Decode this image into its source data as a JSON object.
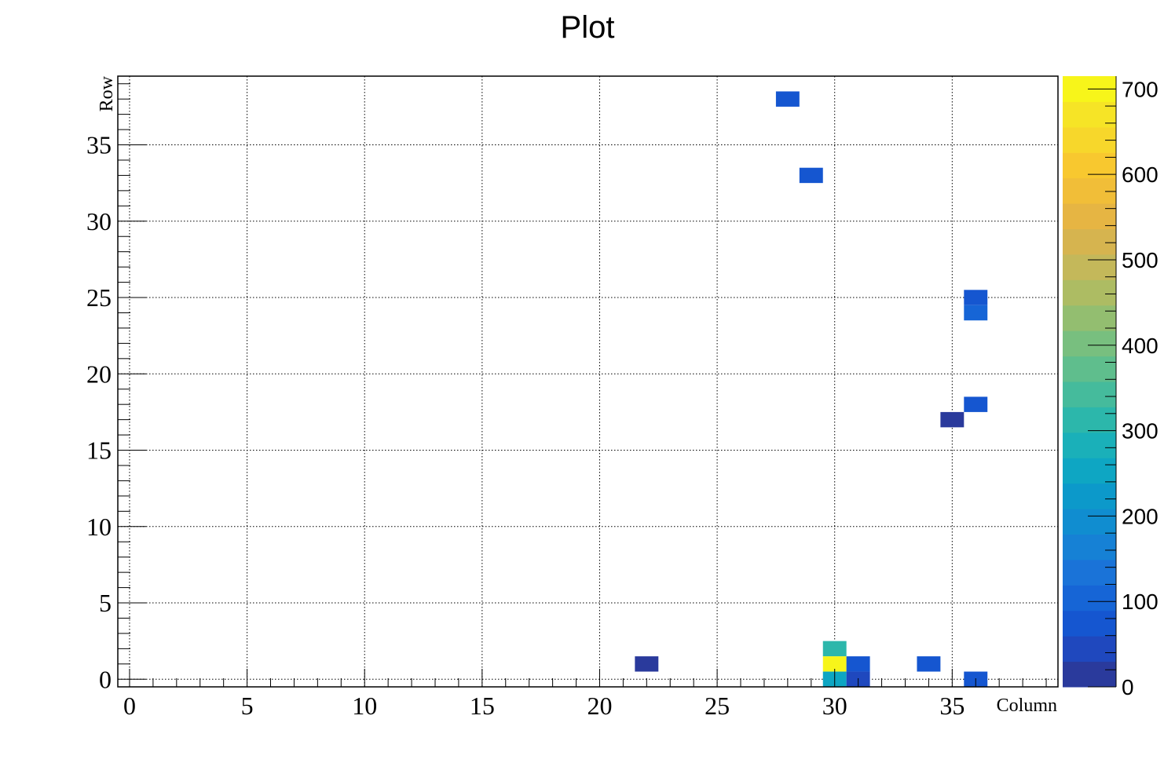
{
  "chart_data": {
    "type": "heatmap",
    "title": "Plot",
    "xlabel": "Column",
    "ylabel": "Row",
    "xlim": [
      -0.5,
      39.5
    ],
    "ylim": [
      -0.5,
      39.5
    ],
    "grid": true,
    "x_ticks": [
      0,
      5,
      10,
      15,
      20,
      25,
      30,
      35
    ],
    "y_ticks": [
      0,
      5,
      10,
      15,
      20,
      25,
      30,
      35
    ],
    "colorbar": {
      "min": 0,
      "max": 715,
      "ticks": [
        0,
        100,
        200,
        300,
        400,
        500,
        600,
        700
      ],
      "palette": [
        "#2a3a9c",
        "#1f48be",
        "#1556d0",
        "#1665d6",
        "#1a73d8",
        "#1681d5",
        "#108dd0",
        "#0c99ca",
        "#0ea6c3",
        "#1ab0b9",
        "#2cb7ab",
        "#45bb9c",
        "#5fbe8d",
        "#78bf7f",
        "#93be70",
        "#adbc63",
        "#c4b85a",
        "#d6b44f",
        "#e6b543",
        "#f1be38",
        "#f8c82f",
        "#f7d72b",
        "#f6e426",
        "#f7f51a"
      ]
    },
    "cells": [
      {
        "x": 28,
        "y": 38,
        "value": 70
      },
      {
        "x": 29,
        "y": 33,
        "value": 70
      },
      {
        "x": 36,
        "y": 25,
        "value": 70
      },
      {
        "x": 36,
        "y": 24,
        "value": 95
      },
      {
        "x": 36,
        "y": 18,
        "value": 70
      },
      {
        "x": 35,
        "y": 17,
        "value": 15
      },
      {
        "x": 30,
        "y": 2,
        "value": 320
      },
      {
        "x": 22,
        "y": 1,
        "value": 15
      },
      {
        "x": 30,
        "y": 1,
        "value": 710
      },
      {
        "x": 31,
        "y": 1,
        "value": 70
      },
      {
        "x": 34,
        "y": 1,
        "value": 75
      },
      {
        "x": 30,
        "y": 0,
        "value": 240
      },
      {
        "x": 31,
        "y": 0,
        "value": 30
      },
      {
        "x": 36,
        "y": 0,
        "value": 70
      }
    ]
  }
}
